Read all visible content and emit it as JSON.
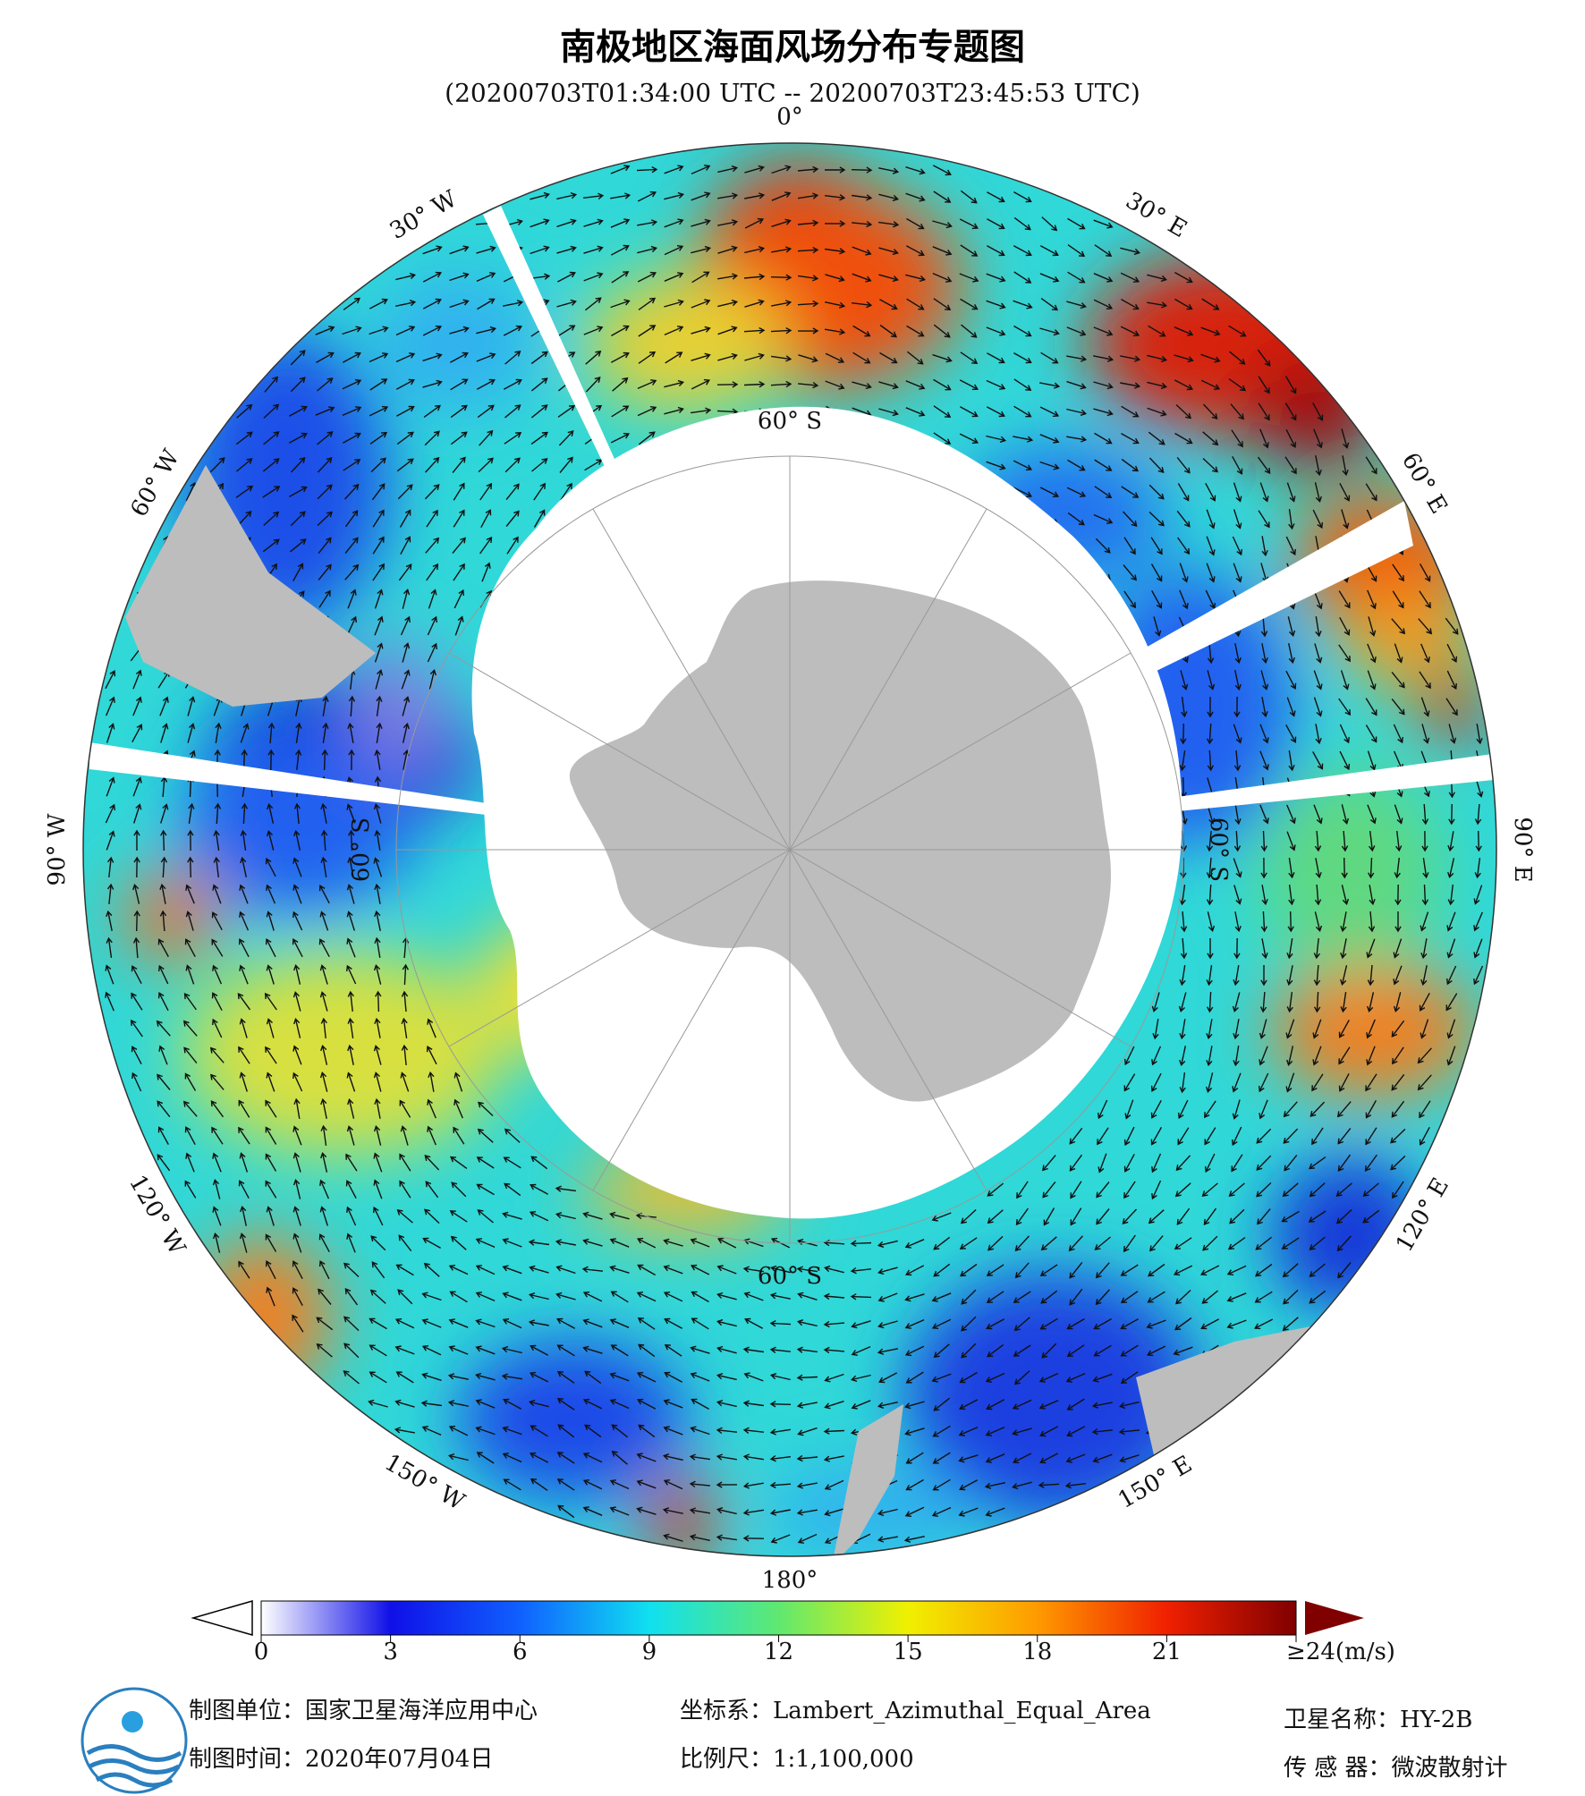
{
  "header": {
    "title": "南极地区海面风场分布专题图",
    "subtitle": "(20200703T01:34:00 UTC -- 20200703T23:45:53 UTC)"
  },
  "map": {
    "longitude_labels": [
      "0°",
      "30° E",
      "60° E",
      "90° E",
      "120° E",
      "150° E",
      "180°",
      "150° W",
      "120° W",
      "90° W",
      "60° W",
      "30° W"
    ],
    "latitude_labels": [
      "60° S",
      "60° S",
      "60° S",
      "60° S"
    ]
  },
  "colorbar": {
    "range": [
      0,
      24
    ],
    "ticks": [
      0,
      3,
      6,
      9,
      12,
      15,
      18,
      21,
      {
        "value": 24,
        "label": "≥24(m/s)"
      }
    ]
  },
  "footer": {
    "producer": "制图单位：国家卫星海洋应用中心",
    "date": "制图时间：2020年07月04日",
    "projection": "坐标系：Lambert_Azimuthal_Equal_Area",
    "scale": "比例尺：1:1,100,000",
    "satellite": "卫星名称：HY-2B",
    "sensor": "传 感 器：微波散射计"
  }
}
